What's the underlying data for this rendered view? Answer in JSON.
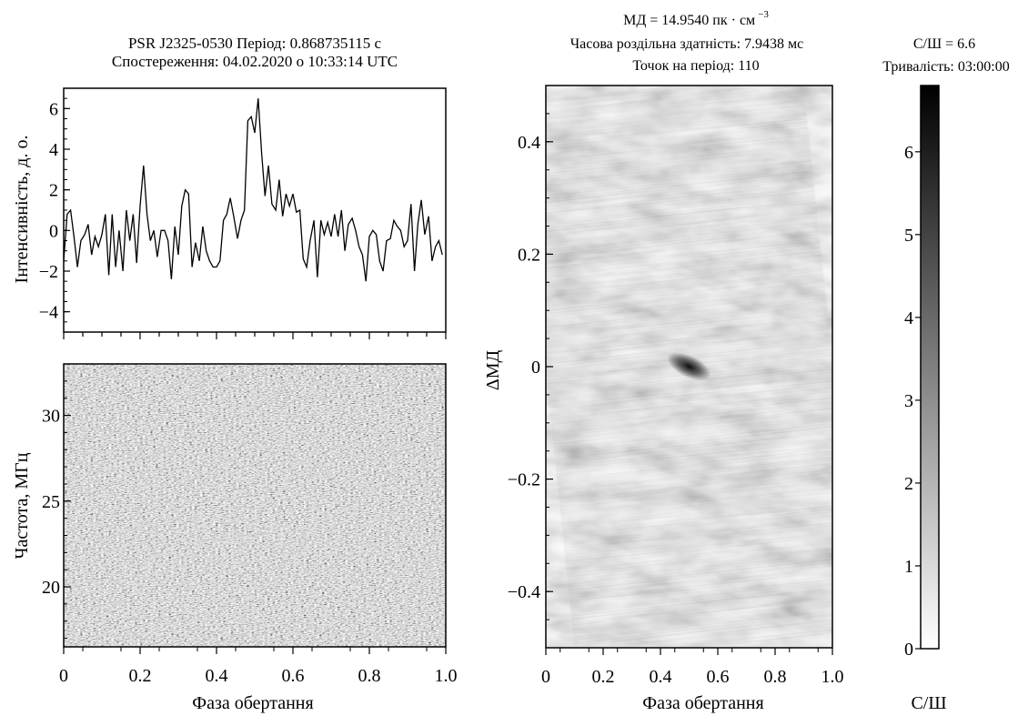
{
  "header_left": {
    "line1": "PSR J2325-0530 Період: 0.868735115 с",
    "line2": "Спостереження: 04.02.2020 о 10:33:14 UTC"
  },
  "header_right": {
    "dm_line": "МД = 14.9540 пк · см",
    "dm_exponent": "−3",
    "time_res": "Часова роздільна здатність: 7.9438 мс",
    "points": "Точок на період: 110",
    "snr": "С/Ш = 6.6",
    "duration": "Тривалість: 03:00:00"
  },
  "chart_data": [
    {
      "id": "profile",
      "type": "line",
      "ylabel": "Інтенсивність, д. о.",
      "xlim": [
        0,
        1
      ],
      "ylim": [
        -5,
        7
      ],
      "yticks": [
        "−4",
        "−2",
        "0",
        "2",
        "4",
        "6"
      ],
      "ytick_values": [
        -4,
        -2,
        0,
        2,
        4,
        6
      ],
      "series": [
        {
          "x": [
            0,
            0.009,
            0.018,
            0.027,
            0.036,
            0.045,
            0.055,
            0.064,
            0.073,
            0.082,
            0.091,
            0.1,
            0.109,
            0.118,
            0.127,
            0.136,
            0.145,
            0.155,
            0.164,
            0.173,
            0.182,
            0.191,
            0.2,
            0.209,
            0.218,
            0.227,
            0.236,
            0.245,
            0.255,
            0.264,
            0.273,
            0.282,
            0.291,
            0.3,
            0.309,
            0.318,
            0.327,
            0.336,
            0.345,
            0.355,
            0.364,
            0.373,
            0.382,
            0.391,
            0.4,
            0.409,
            0.418,
            0.427,
            0.436,
            0.445,
            0.455,
            0.464,
            0.473,
            0.482,
            0.491,
            0.5,
            0.509,
            0.518,
            0.527,
            0.536,
            0.545,
            0.555,
            0.564,
            0.573,
            0.582,
            0.591,
            0.6,
            0.609,
            0.618,
            0.627,
            0.636,
            0.645,
            0.655,
            0.664,
            0.673,
            0.682,
            0.691,
            0.7,
            0.709,
            0.718,
            0.727,
            0.736,
            0.745,
            0.755,
            0.764,
            0.773,
            0.782,
            0.791,
            0.8,
            0.809,
            0.818,
            0.827,
            0.836,
            0.845,
            0.855,
            0.864,
            0.873,
            0.882,
            0.891,
            0.9,
            0.909,
            0.918,
            0.927,
            0.936,
            0.945,
            0.955,
            0.964,
            0.973,
            0.982,
            0.991
          ],
          "y": [
            -1.5,
            0.8,
            1.0,
            -0.3,
            -1.8,
            -0.5,
            -0.2,
            0.3,
            -1.2,
            -0.3,
            -0.8,
            -0.2,
            0.8,
            -2.2,
            0.8,
            -1.8,
            0.0,
            -2.0,
            1.0,
            -0.5,
            0.8,
            -1.6,
            1.2,
            3.2,
            0.8,
            -0.5,
            0.0,
            -1.3,
            0.0,
            0.0,
            -0.5,
            -2.4,
            0.2,
            -1.2,
            1.2,
            2.0,
            1.8,
            -1.8,
            -0.6,
            -1.5,
            0.2,
            -1.0,
            -1.5,
            -1.8,
            -1.8,
            -1.5,
            0.5,
            0.8,
            1.6,
            0.7,
            -0.4,
            0.5,
            1.0,
            5.4,
            5.6,
            4.8,
            6.5,
            3.8,
            1.7,
            3.2,
            1.3,
            1.0,
            2.5,
            0.7,
            1.8,
            1.2,
            1.8,
            0.9,
            1.0,
            -1.4,
            -1.8,
            -0.5,
            0.5,
            -2.3,
            0.5,
            -0.2,
            0.4,
            -0.3,
            0.8,
            -0.3,
            1.0,
            -1.0,
            0.3,
            0.6,
            0.0,
            -0.8,
            -1.2,
            -2.5,
            -0.3,
            0.0,
            -0.2,
            -1.5,
            -2.0,
            -0.5,
            -0.4,
            0.5,
            0.2,
            0.0,
            -0.8,
            -0.5,
            1.3,
            -2.0,
            0.3,
            1.5,
            -0.2,
            0.7,
            -1.5,
            -0.8,
            -0.5,
            -1.2
          ]
        }
      ]
    },
    {
      "id": "dynamic-spectrum",
      "type": "heatmap",
      "xlabel": "Фаза обертання",
      "ylabel": "Частота, МГц",
      "xlim": [
        0,
        1
      ],
      "ylim": [
        16.5,
        33
      ],
      "xticks": [
        "0",
        "0.2",
        "0.4",
        "0.6",
        "0.8",
        "1.0"
      ],
      "xtick_values": [
        0,
        0.2,
        0.4,
        0.6,
        0.8,
        1.0
      ],
      "yticks": [
        "20",
        "25",
        "30"
      ],
      "ytick_values": [
        20,
        25,
        30
      ],
      "colormap": "gray noise"
    },
    {
      "id": "dm-phase",
      "type": "heatmap",
      "xlabel": "Фаза обертання",
      "ylabel": "ΔМД",
      "xlim": [
        0,
        1
      ],
      "ylim": [
        -0.5,
        0.5
      ],
      "xticks": [
        "0",
        "0.2",
        "0.4",
        "0.6",
        "0.8",
        "1.0"
      ],
      "xtick_values": [
        0,
        0.2,
        0.4,
        0.6,
        0.8,
        1.0
      ],
      "yticks": [
        "0.4",
        "0.2",
        "0",
        "−0.2",
        "−0.4"
      ],
      "ytick_values": [
        0.4,
        0.2,
        0,
        -0.2,
        -0.4
      ],
      "peak": {
        "phase": 0.5,
        "delta_dm": 0.0
      }
    },
    {
      "id": "colorbar",
      "type": "heatmap",
      "label": "С/Ш",
      "range": [
        0,
        6.8
      ],
      "ticks": [
        "0",
        "1",
        "2",
        "3",
        "4",
        "5",
        "6"
      ],
      "tick_values": [
        0,
        1,
        2,
        3,
        4,
        5,
        6
      ],
      "colors": {
        "low": "#ffffff",
        "high": "#000000"
      }
    }
  ]
}
